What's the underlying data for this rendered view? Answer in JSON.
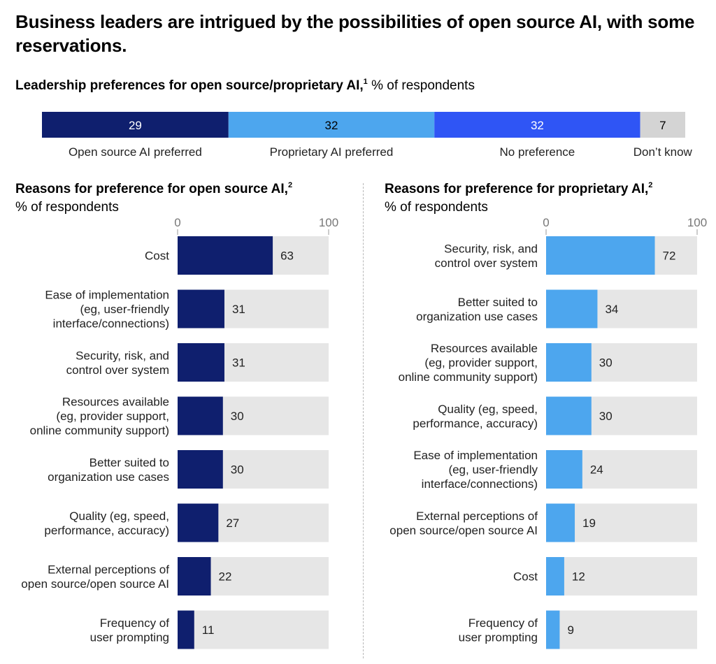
{
  "title": "Business leaders are intrigued by the possibilities of open source AI, with some reservations.",
  "colors": {
    "open_source": "#0f1f6e",
    "proprietary": "#4da6ee",
    "no_preference": "#2f55f5",
    "dont_know": "#d4d4d4",
    "track": "#e6e6e6"
  },
  "chart_data": [
    {
      "type": "bar",
      "orientation": "horizontal-stacked",
      "title": "Leadership preferences for open source/proprietary AI,",
      "footnote": "1",
      "subtitle": "% of respondents",
      "series": [
        {
          "name": "Open source AI preferred",
          "value": 29,
          "color": "#0f1f6e"
        },
        {
          "name": "Proprietary AI preferred",
          "value": 32,
          "color": "#4da6ee"
        },
        {
          "name": "No preference",
          "value": 32,
          "color": "#2f55f5"
        },
        {
          "name": "Don’t know",
          "value": 7,
          "color": "#d4d4d4"
        }
      ]
    },
    {
      "type": "bar",
      "orientation": "horizontal",
      "title": "Reasons for preference for open source AI,",
      "footnote": "2",
      "subtitle": "% of respondents",
      "xlim": [
        0,
        100
      ],
      "ticks": [
        "0",
        "100"
      ],
      "bar_color": "#0f1f6e",
      "categories": [
        [
          "Cost"
        ],
        [
          "Ease of implementation",
          "(eg, user-friendly",
          "interface/connections)"
        ],
        [
          "Security, risk, and",
          "control over system"
        ],
        [
          "Resources available",
          "(eg, provider support,",
          "online community support)"
        ],
        [
          "Better suited to",
          "organization use cases"
        ],
        [
          "Quality (eg, speed,",
          "performance, accuracy)"
        ],
        [
          "External perceptions of",
          "open source/open source AI"
        ],
        [
          "Frequency of",
          "user prompting"
        ]
      ],
      "values": [
        63,
        31,
        31,
        30,
        30,
        27,
        22,
        11
      ]
    },
    {
      "type": "bar",
      "orientation": "horizontal",
      "title": "Reasons for preference for proprietary AI,",
      "footnote": "2",
      "subtitle": "% of respondents",
      "xlim": [
        0,
        100
      ],
      "ticks": [
        "0",
        "100"
      ],
      "bar_color": "#4da6ee",
      "categories": [
        [
          "Security, risk, and",
          "control over system"
        ],
        [
          "Better suited to",
          "organization use cases"
        ],
        [
          "Resources available",
          "(eg, provider support,",
          "online community support)"
        ],
        [
          "Quality (eg, speed,",
          "performance, accuracy)"
        ],
        [
          "Ease of implementation",
          "(eg, user-friendly",
          "interface/connections)"
        ],
        [
          "External perceptions of",
          "open source/open source AI"
        ],
        [
          "Cost"
        ],
        [
          "Frequency of",
          "user prompting"
        ]
      ],
      "values": [
        72,
        34,
        30,
        30,
        24,
        19,
        12,
        9
      ]
    }
  ]
}
